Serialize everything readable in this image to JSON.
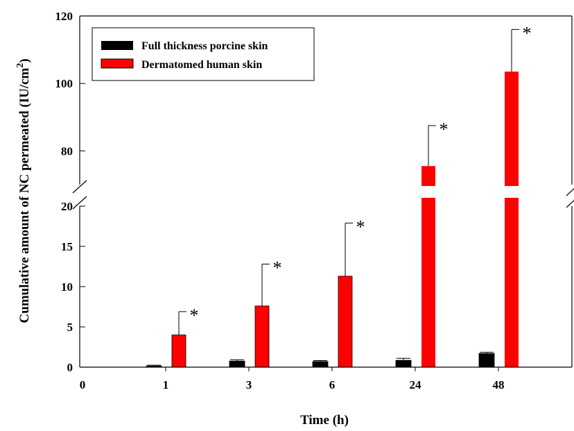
{
  "chart_data": {
    "type": "bar",
    "title": "",
    "xlabel": "Time (h)",
    "ylabel_main": "Cumulative amount of NC permeated (IU/cm",
    "ylabel_sup": "2",
    "ylabel_close": ")",
    "x_zero_label": "0",
    "categories": [
      "1",
      "3",
      "6",
      "24",
      "48"
    ],
    "series": [
      {
        "name": "Full thickness porcine skin",
        "color": "#000000",
        "values": [
          0.15,
          0.75,
          0.7,
          0.85,
          1.7
        ],
        "errors": [
          0.1,
          0.15,
          0.12,
          0.25,
          0.15
        ]
      },
      {
        "name": "Dermatomed human skin",
        "color": "#ff0000",
        "values": [
          4.0,
          7.6,
          11.3,
          75.5,
          103.5
        ],
        "errors": [
          2.9,
          5.2,
          6.6,
          12.0,
          12.5
        ]
      }
    ],
    "significance_marker": "*",
    "significant": [
      true,
      true,
      true,
      true,
      true
    ],
    "axis_break": {
      "lower_range": [
        0,
        20
      ],
      "upper_range": [
        70,
        120
      ]
    },
    "yticks_lower": [
      "0",
      "5",
      "10",
      "15",
      "20"
    ],
    "yticks_upper": [
      "80",
      "100",
      "120"
    ],
    "grid": false,
    "legend_position": "top-left"
  }
}
